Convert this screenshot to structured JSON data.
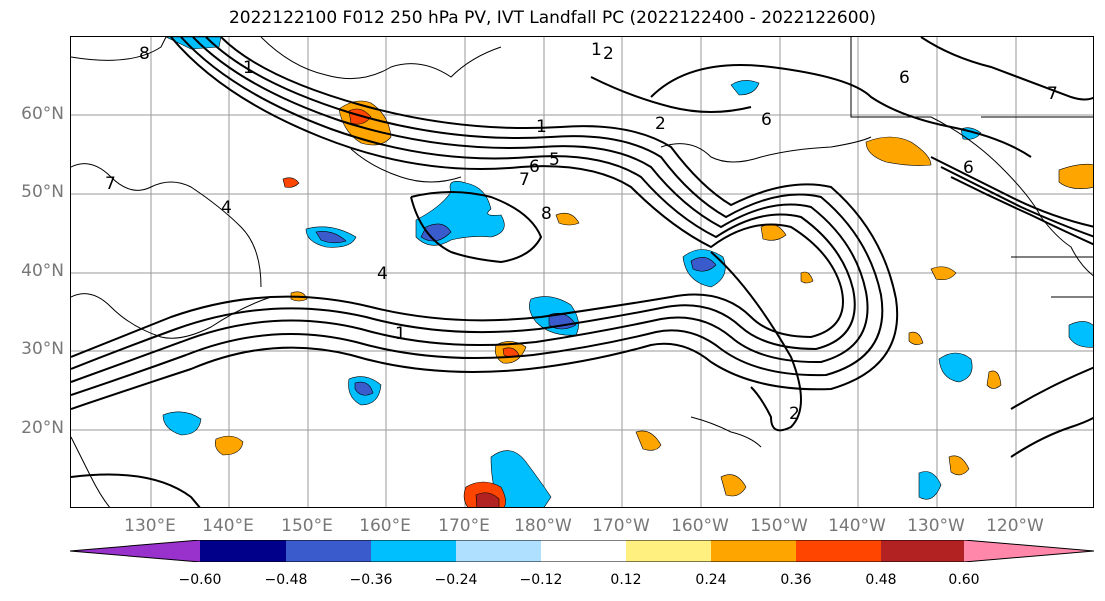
{
  "title": "2022122100 F012 250 hPa PV, IVT Landfall PC (2022122400 - 2022122600)",
  "lat_labels": [
    "60°N",
    "50°N",
    "40°N",
    "30°N",
    "20°N"
  ],
  "lon_labels": [
    "130°E",
    "140°E",
    "150°E",
    "160°E",
    "170°E",
    "180°W",
    "170°W",
    "160°W",
    "150°W",
    "140°W",
    "130°W",
    "120°W"
  ],
  "map": {
    "lon_range": [
      120,
      250
    ],
    "lat_range": [
      10,
      70
    ],
    "contour_labels": [
      "8",
      "1",
      "1",
      "2",
      "6",
      "7",
      "1",
      "2",
      "6",
      "6",
      "5",
      "7",
      "4",
      "4",
      "1",
      "2",
      "8",
      "7",
      "6"
    ]
  },
  "colorbar": {
    "ticks": [
      "−0.60",
      "−0.48",
      "−0.36",
      "−0.24",
      "−0.12",
      "0.12",
      "0.24",
      "0.36",
      "0.48",
      "0.60"
    ],
    "colors": [
      "#9932cc",
      "#00008b",
      "#3a5bcc",
      "#00bfff",
      "#b0e0ff",
      "#ffffff",
      "#fff080",
      "#ffa500",
      "#ff4500",
      "#b22222",
      "#ff88aa"
    ]
  }
}
